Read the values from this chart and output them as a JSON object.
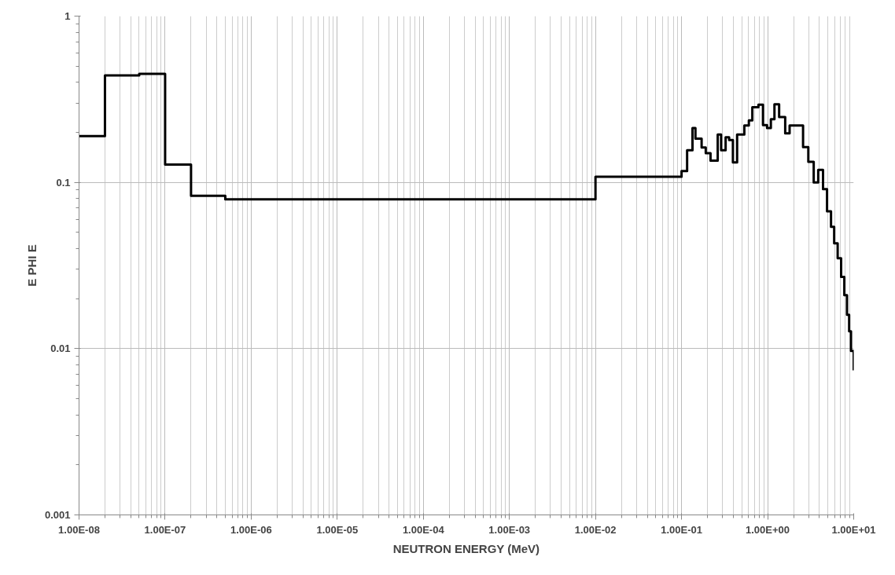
{
  "chart_data": {
    "type": "step",
    "xlabel": "NEUTRON ENERGY (MeV)",
    "ylabel": "E PHI E",
    "log": "xy",
    "grid": true,
    "marker": "none",
    "line_style": "solid",
    "x": [
      1e-08,
      2e-08,
      5e-08,
      1e-07,
      2e-07,
      5e-07,
      0.01,
      0.1,
      0.116,
      0.134,
      0.145,
      0.171,
      0.191,
      0.217,
      0.263,
      0.288,
      0.325,
      0.357,
      0.395,
      0.442,
      0.536,
      0.605,
      0.664,
      0.782,
      0.883,
      0.984,
      1.09,
      1.2,
      1.36,
      1.6,
      1.8,
      2.58,
      2.97,
      3.43,
      3.87,
      4.4,
      4.9,
      5.45,
      5.93,
      6.51,
      7.14,
      7.78,
      8.36,
      8.85,
      9.3,
      10
    ],
    "series": [
      {
        "color": "#000000",
        "values": [
          0.19,
          0.44,
          0.45,
          0.128,
          0.083,
          0.079,
          0.108,
          0.117,
          0.156,
          0.212,
          0.183,
          0.162,
          0.15,
          0.135,
          0.194,
          0.156,
          0.187,
          0.18,
          0.132,
          0.194,
          0.22,
          0.236,
          0.283,
          0.293,
          0.221,
          0.212,
          0.24,
          0.295,
          0.247,
          0.197,
          0.22,
          0.163,
          0.133,
          0.1,
          0.119,
          0.091,
          0.067,
          0.054,
          0.043,
          0.035,
          0.027,
          0.021,
          0.016,
          0.0127,
          0.0097,
          0.0074
        ]
      }
    ],
    "xlim": [
      1e-08,
      10
    ],
    "ylim": [
      0.001,
      1
    ],
    "xticks": [
      {
        "value": 1e-08,
        "label": "1.00E-08"
      },
      {
        "value": 1e-07,
        "label": "1.00E-07"
      },
      {
        "value": 1e-06,
        "label": "1.00E-06"
      },
      {
        "value": 1e-05,
        "label": "1.00E-05"
      },
      {
        "value": 0.0001,
        "label": "1.00E-04"
      },
      {
        "value": 0.001,
        "label": "1.00E-03"
      },
      {
        "value": 0.01,
        "label": "1.00E-02"
      },
      {
        "value": 0.1,
        "label": "1.00E-01"
      },
      {
        "value": 1,
        "label": "1.00E+00"
      },
      {
        "value": 10,
        "label": "1.00E+01"
      }
    ],
    "yticks": [
      {
        "value": 0.001,
        "label": "0.001"
      },
      {
        "value": 0.01,
        "label": "0.01"
      },
      {
        "value": 0.1,
        "label": "0.1"
      },
      {
        "value": 1,
        "label": "1"
      }
    ]
  }
}
